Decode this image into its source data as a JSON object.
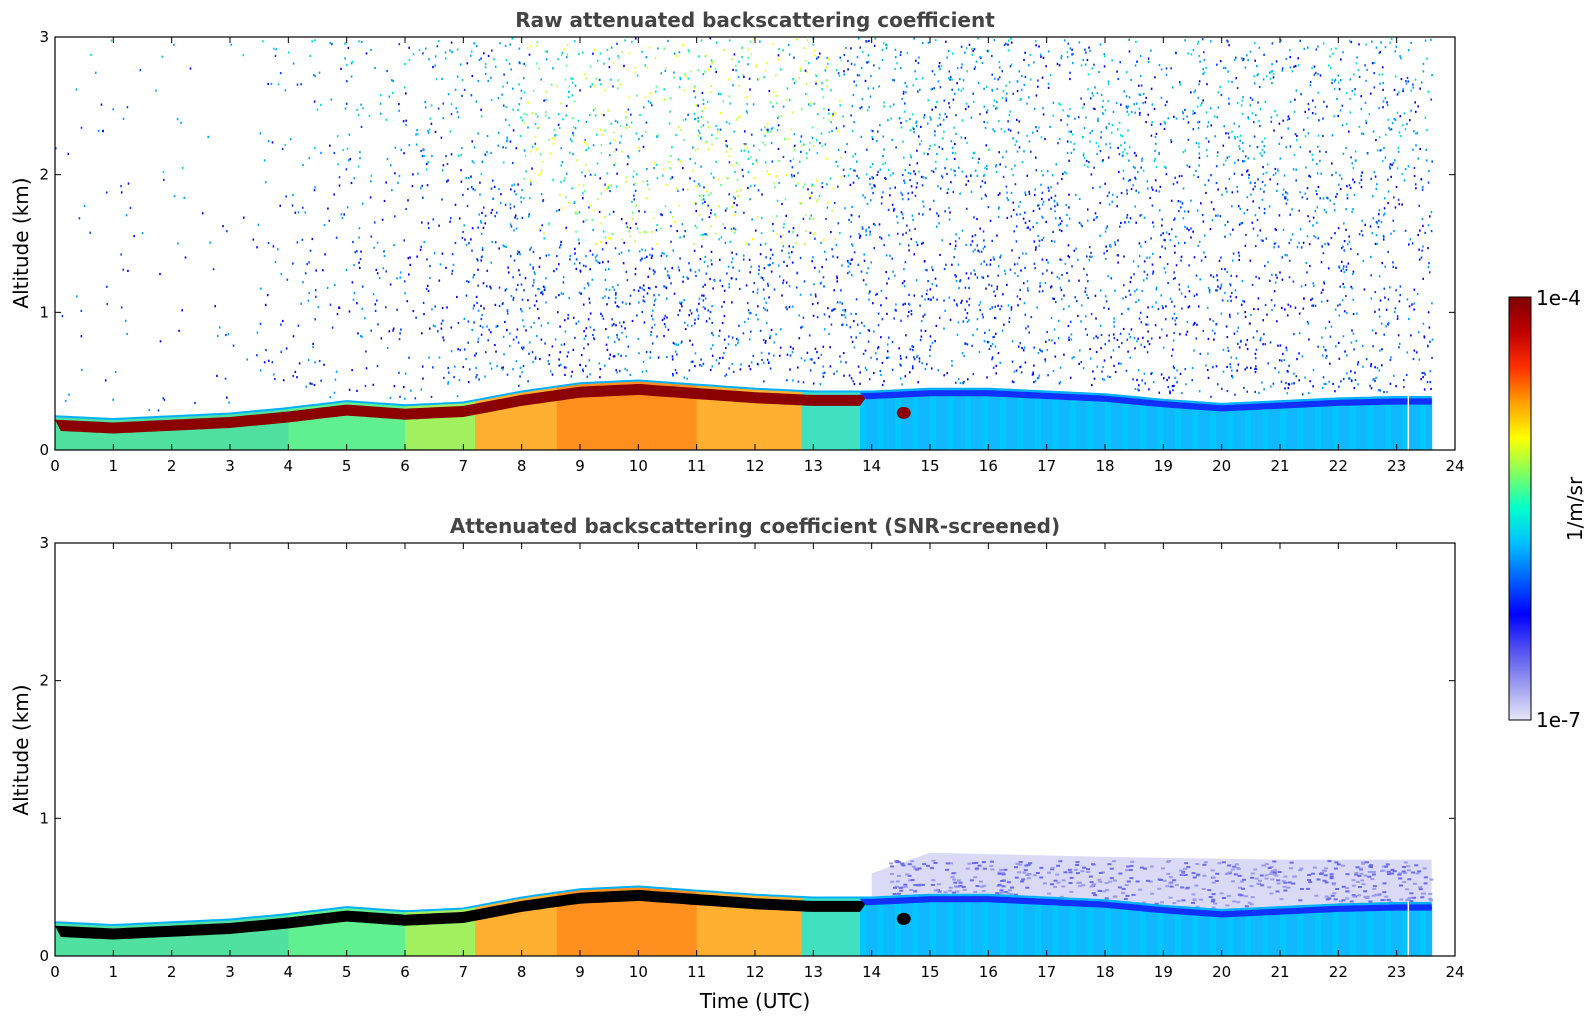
{
  "chart_data": [
    {
      "type": "heatmap",
      "title": "Raw attenuated backscattering coefficient",
      "xlabel": "",
      "ylabel": "Altitude (km)",
      "xlim": [
        0,
        24
      ],
      "ylim": [
        0,
        3
      ],
      "x_ticks": [
        "0",
        "1",
        "2",
        "3",
        "4",
        "5",
        "6",
        "7",
        "8",
        "9",
        "10",
        "11",
        "12",
        "13",
        "14",
        "15",
        "16",
        "17",
        "18",
        "19",
        "20",
        "21",
        "22",
        "23",
        "24"
      ],
      "y_ticks": [
        "0",
        "1",
        "2",
        "3"
      ],
      "data_end_time": 23.6,
      "boundary_layer_top_km": [
        [
          0,
          0.24
        ],
        [
          1,
          0.22
        ],
        [
          2,
          0.24
        ],
        [
          3,
          0.26
        ],
        [
          4,
          0.3
        ],
        [
          5,
          0.35
        ],
        [
          6,
          0.32
        ],
        [
          7,
          0.34
        ],
        [
          8,
          0.42
        ],
        [
          9,
          0.48
        ],
        [
          10,
          0.5
        ],
        [
          11,
          0.47
        ],
        [
          12,
          0.44
        ],
        [
          13,
          0.42
        ],
        [
          14,
          0.42
        ],
        [
          15,
          0.44
        ],
        [
          16,
          0.44
        ],
        [
          17,
          0.42
        ],
        [
          18,
          0.4
        ],
        [
          19,
          0.36
        ],
        [
          20,
          0.33
        ],
        [
          21,
          0.35
        ],
        [
          22,
          0.37
        ],
        [
          23,
          0.38
        ],
        [
          23.6,
          0.38
        ]
      ],
      "noise_speckle": "sparse high-altitude noise from ~3.5 UTC onward, strongest 8–13 UTC"
    },
    {
      "type": "heatmap",
      "title": "Attenuated backscattering coefficient (SNR-screened)",
      "xlabel": "Time (UTC)",
      "ylabel": "Altitude (km)",
      "xlim": [
        0,
        24
      ],
      "ylim": [
        0,
        3
      ],
      "x_ticks": [
        "0",
        "1",
        "2",
        "3",
        "4",
        "5",
        "6",
        "7",
        "8",
        "9",
        "10",
        "11",
        "12",
        "13",
        "14",
        "15",
        "16",
        "17",
        "18",
        "19",
        "20",
        "21",
        "22",
        "23",
        "24"
      ],
      "y_ticks": [
        "0",
        "1",
        "2",
        "3"
      ],
      "data_end_time": 23.6,
      "screened_top_km": [
        [
          14,
          0.6
        ],
        [
          15,
          0.75
        ],
        [
          18,
          0.72
        ],
        [
          21,
          0.7
        ],
        [
          23.6,
          0.7
        ]
      ]
    }
  ],
  "colorbar": {
    "label": "1/m/sr",
    "max_label": "1e-4",
    "min_label": "1e-7",
    "colors": [
      "#e8e8f8",
      "#9c9cf0",
      "#5050f0",
      "#0000ff",
      "#0060ff",
      "#00bfff",
      "#00ffcc",
      "#80ff60",
      "#ffff00",
      "#ffa000",
      "#ff3000",
      "#c00000",
      "#800000"
    ]
  },
  "palette": {
    "aerosol_low": "#00c8ff",
    "aerosol_high": "#ff8c00",
    "layer_top": "#8b0000",
    "screened_saturation": "#000000"
  }
}
